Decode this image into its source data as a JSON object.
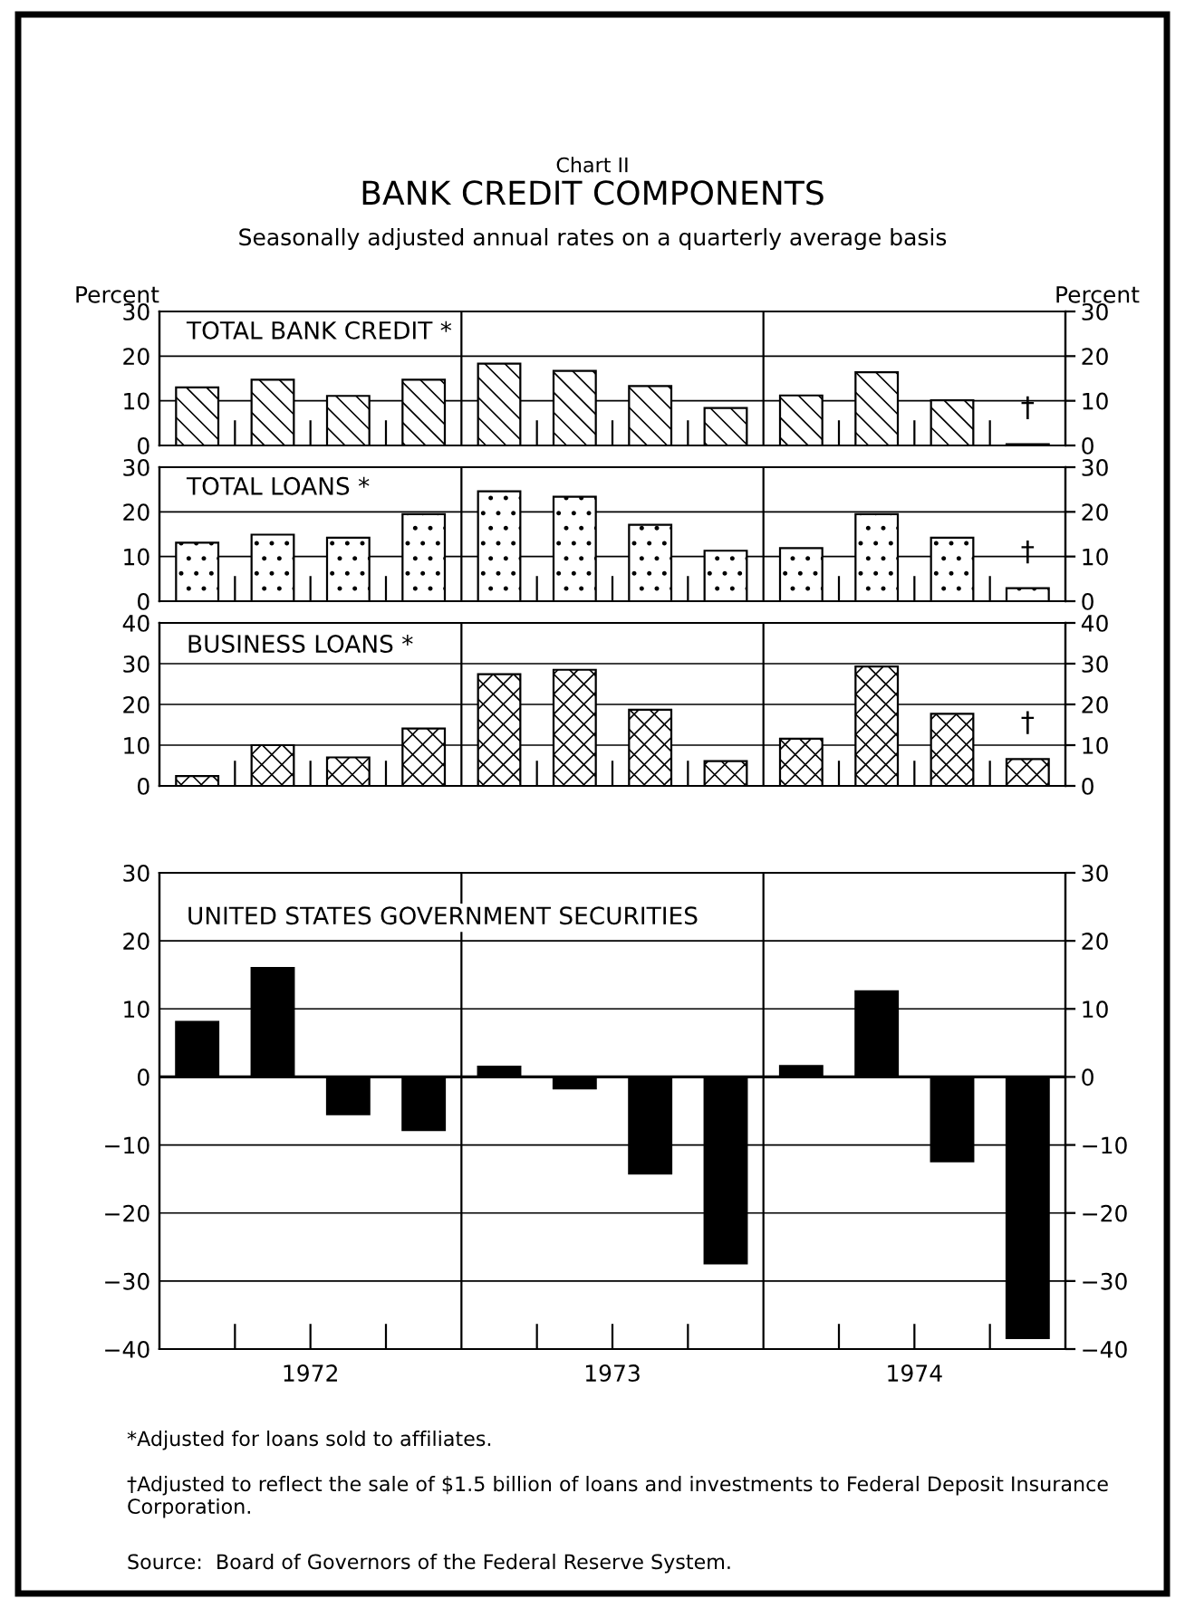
{
  "chart_data": [
    {
      "type": "bar",
      "title": "BANK CREDIT COMPONENTS",
      "subtitle": "Seasonally adjusted annual rates on a quarterly average basis",
      "annotations": [
        "Chart II",
        "†"
      ],
      "ylabel": "Percent",
      "y2label": "Percent",
      "x": [
        1972.125,
        1972.375,
        1972.625,
        1972.875,
        1973.125,
        1973.375,
        1973.625,
        1973.875,
        1974.125,
        1974.375,
        1974.625,
        1974.875
      ],
      "xlim": [
        1972,
        1975
      ],
      "xticks": [
        {
          "value": 1972.25,
          "label": null
        },
        {
          "value": 1972.5,
          "label": null
        },
        {
          "value": 1972.75,
          "label": null
        },
        {
          "value": 1973.25,
          "label": null
        },
        {
          "value": 1973.5,
          "label": null
        },
        {
          "value": 1973.75,
          "label": null
        },
        {
          "value": 1974.25,
          "label": null
        },
        {
          "value": 1974.5,
          "label": null
        },
        {
          "value": 1974.75,
          "label": null
        }
      ],
      "series": [
        {
          "name": "TOTAL BANK CREDIT *",
          "color": "#000000",
          "values": [
            13,
            14.7,
            11.1,
            14.7,
            18.3,
            16.7,
            13.3,
            8.4,
            11.2,
            16.4,
            10.1,
            0.3
          ]
        }
      ],
      "ylim": [
        0,
        30
      ],
      "yticks": [
        0,
        10,
        20,
        30
      ],
      "y2lim": [
        0,
        30
      ],
      "y2ticks": [
        0,
        10,
        20,
        30
      ],
      "grid": "y",
      "tick_labels": "y",
      "ref_lines": [
        {
          "axis": "x",
          "value": 1973,
          "label": null
        },
        {
          "axis": "x",
          "value": 1974,
          "label": null
        }
      ]
    },
    {
      "type": "bar",
      "annotations": [
        "†"
      ],
      "x": [
        1972.125,
        1972.375,
        1972.625,
        1972.875,
        1973.125,
        1973.375,
        1973.625,
        1973.875,
        1974.125,
        1974.375,
        1974.625,
        1974.875
      ],
      "xlim": [
        1972,
        1975
      ],
      "xticks": [
        {
          "value": 1972.25,
          "label": null
        },
        {
          "value": 1972.5,
          "label": null
        },
        {
          "value": 1972.75,
          "label": null
        },
        {
          "value": 1973.25,
          "label": null
        },
        {
          "value": 1973.5,
          "label": null
        },
        {
          "value": 1973.75,
          "label": null
        },
        {
          "value": 1974.25,
          "label": null
        },
        {
          "value": 1974.5,
          "label": null
        },
        {
          "value": 1974.75,
          "label": null
        }
      ],
      "series": [
        {
          "name": "TOTAL LOANS *",
          "color": "#000000",
          "values": [
            13.1,
            14.9,
            14.2,
            19.5,
            24.6,
            23.4,
            17.1,
            11.3,
            11.9,
            19.5,
            14.2,
            2.9
          ]
        }
      ],
      "ylim": [
        0,
        30
      ],
      "yticks": [
        0,
        10,
        20,
        30
      ],
      "y2lim": [
        0,
        30
      ],
      "y2ticks": [
        0,
        10,
        20,
        30
      ],
      "grid": "y",
      "tick_labels": "y",
      "ref_lines": [
        {
          "axis": "x",
          "value": 1973,
          "label": null
        },
        {
          "axis": "x",
          "value": 1974,
          "label": null
        }
      ]
    },
    {
      "type": "bar",
      "annotations": [
        "†"
      ],
      "x": [
        1972.125,
        1972.375,
        1972.625,
        1972.875,
        1973.125,
        1973.375,
        1973.625,
        1973.875,
        1974.125,
        1974.375,
        1974.625,
        1974.875
      ],
      "xlim": [
        1972,
        1975
      ],
      "xticks": [
        {
          "value": 1972.25,
          "label": null
        },
        {
          "value": 1972.5,
          "label": null
        },
        {
          "value": 1972.75,
          "label": null
        },
        {
          "value": 1973.25,
          "label": null
        },
        {
          "value": 1973.5,
          "label": null
        },
        {
          "value": 1973.75,
          "label": null
        },
        {
          "value": 1974.25,
          "label": null
        },
        {
          "value": 1974.5,
          "label": null
        },
        {
          "value": 1974.75,
          "label": null
        }
      ],
      "series": [
        {
          "name": "BUSINESS LOANS *",
          "color": "#000000",
          "values": [
            2.4,
            10,
            7,
            14.1,
            27.4,
            28.5,
            18.7,
            6.1,
            11.6,
            29.3,
            17.7,
            6.6
          ]
        }
      ],
      "ylim": [
        0,
        40
      ],
      "yticks": [
        0,
        10,
        20,
        30,
        40
      ],
      "y2lim": [
        0,
        40
      ],
      "y2ticks": [
        0,
        10,
        20,
        30,
        40
      ],
      "grid": "y",
      "tick_labels": "y",
      "ref_lines": [
        {
          "axis": "x",
          "value": 1973,
          "label": null
        },
        {
          "axis": "x",
          "value": 1974,
          "label": null
        }
      ]
    },
    {
      "type": "bar",
      "annotations": [
        "*Adjusted for loans sold to affiliates.",
        "†Adjusted to reflect the sale of $1.5 billion of loans and investments to Federal Deposit Insurance Corporation.",
        "Source:  Board of Governors of the Federal Reserve System."
      ],
      "x": [
        1972.125,
        1972.375,
        1972.625,
        1972.875,
        1973.125,
        1973.375,
        1973.625,
        1973.875,
        1974.125,
        1974.375,
        1974.625,
        1974.875
      ],
      "xlim": [
        1972,
        1975
      ],
      "xticks": [
        {
          "value": 1972.25,
          "label": null
        },
        {
          "value": 1972.5,
          "label": "1972"
        },
        {
          "value": 1972.75,
          "label": null
        },
        {
          "value": 1973.25,
          "label": null
        },
        {
          "value": 1973.5,
          "label": "1973"
        },
        {
          "value": 1973.75,
          "label": null
        },
        {
          "value": 1974.25,
          "label": null
        },
        {
          "value": 1974.5,
          "label": "1974"
        },
        {
          "value": 1974.75,
          "label": null
        }
      ],
      "series": [
        {
          "name": "UNITED STATES GOVERNMENT SECURITIES",
          "color": "#000000",
          "values": [
            8.1,
            16,
            -5.5,
            -7.8,
            1.5,
            -1.7,
            -14.2,
            -27.4,
            1.6,
            12.6,
            -12.4,
            -38.4
          ]
        }
      ],
      "ylim": [
        -40,
        30
      ],
      "yticks": [
        {
          "value": -40,
          "label": "−40"
        },
        {
          "value": -30,
          "label": "−30"
        },
        {
          "value": -20,
          "label": "−20"
        },
        {
          "value": -10,
          "label": "−10"
        },
        0,
        10,
        20,
        30
      ],
      "y2lim": [
        -40,
        30
      ],
      "y2ticks": [
        {
          "value": -40,
          "label": "−40"
        },
        {
          "value": -30,
          "label": "−30"
        },
        {
          "value": -20,
          "label": "−20"
        },
        {
          "value": -10,
          "label": "−10"
        },
        0,
        10,
        20,
        30
      ],
      "grid": "y",
      "ref_lines": [
        {
          "axis": "x",
          "value": 1973,
          "label": null
        },
        {
          "axis": "x",
          "value": 1974,
          "label": null
        },
        {
          "axis": "y",
          "value": 0,
          "label": null
        }
      ]
    }
  ]
}
